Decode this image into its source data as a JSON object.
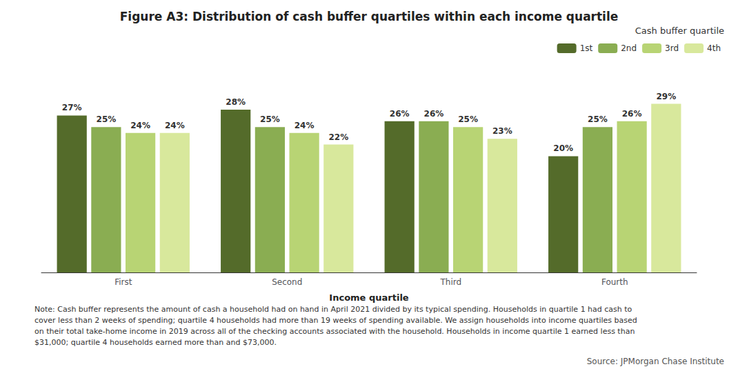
{
  "chart_data": {
    "type": "bar",
    "title": "Figure A3: Distribution of cash buffer quartiles within each income quartile",
    "xlabel": "Income quartile",
    "categories": [
      "First",
      "Second",
      "Third",
      "Fourth"
    ],
    "series": [
      {
        "name": "1st",
        "color": "#546b2a",
        "values": [
          27,
          28,
          26,
          20
        ],
        "value_labels": [
          "27%",
          "28%",
          "26%",
          "20%"
        ]
      },
      {
        "name": "2nd",
        "color": "#8aad52",
        "values": [
          25,
          25,
          26,
          25
        ],
        "value_labels": [
          "25%",
          "25%",
          "26%",
          "25%"
        ]
      },
      {
        "name": "3rd",
        "color": "#b8d474",
        "values": [
          24,
          24,
          25,
          26
        ],
        "value_labels": [
          "24%",
          "24%",
          "25%",
          "26%"
        ]
      },
      {
        "name": "4th",
        "color": "#d8e89c",
        "values": [
          24,
          22,
          23,
          29
        ],
        "value_labels": [
          "24%",
          "22%",
          "23%",
          "29%"
        ]
      }
    ],
    "legend_title": "Cash buffer quartile",
    "legend": "upper right",
    "ylim": [
      0,
      35
    ],
    "yticks": [],
    "tick_labels": "x",
    "grid": false,
    "data_labels": true,
    "notes": [
      "Note: Cash buffer represents the amount of cash a household had on hand in April 2021 divided by its typical spending. Households in quartile 1 had cash to",
      "cover less than 2 weeks of spending; quartile 4 households had more than 19 weeks of spending available. We assign households into income quartiles based",
      "on their total take-home income in 2019 across all of the checking accounts associated with the household. Households in income quartile 1 earned less than",
      "$31,000; quartile 4 households earned more than and $73,000."
    ],
    "source": "Source: JPMorgan Chase Institute"
  }
}
